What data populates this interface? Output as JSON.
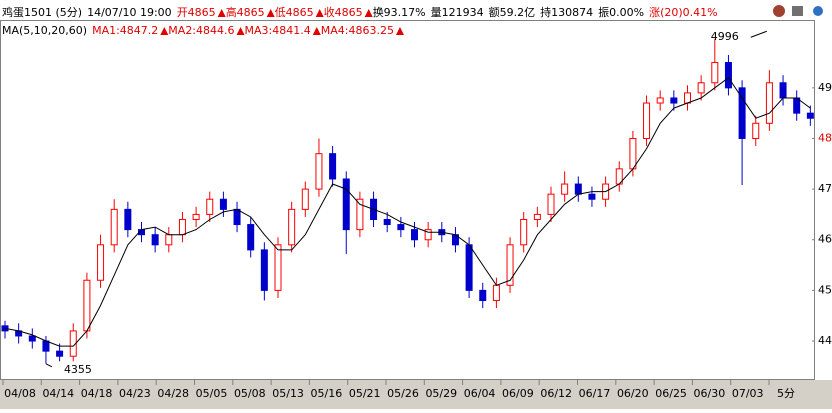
{
  "header": {
    "symbol": "鸡蛋1501 (5分)",
    "time": "14/07/10 19:00",
    "open": "开4865",
    "high": "高4865",
    "low": "低4865",
    "close": "收4865",
    "turnover": "换93.17%",
    "volume": "量121934",
    "amount": "额59.2亿",
    "position": "持130874",
    "amplitude": "振0.00%",
    "change": "涨(20)0.41%",
    "ma_title": "MA(5,10,20,60)",
    "ma1": "MA1:4847.2",
    "ma2": "MA2:4844.6",
    "ma3": "MA3:4841.4",
    "ma4": "MA4:4863.25"
  },
  "chart_data": {
    "type": "candlestick",
    "categories": [
      "04/08",
      "04/14",
      "04/18",
      "04/23",
      "04/28",
      "05/05",
      "05/08",
      "05/13",
      "05/16",
      "05/21",
      "05/26",
      "05/29",
      "06/04",
      "06/09",
      "06/12",
      "06/17",
      "06/20",
      "06/25",
      "06/30",
      "07/03",
      "5分"
    ],
    "ohlc": [
      [
        4430,
        4440,
        4405,
        4420
      ],
      [
        4420,
        4435,
        4395,
        4410
      ],
      [
        4410,
        4425,
        4385,
        4400
      ],
      [
        4400,
        4410,
        4355,
        4380
      ],
      [
        4380,
        4395,
        4360,
        4370
      ],
      [
        4370,
        4435,
        4360,
        4420
      ],
      [
        4420,
        4535,
        4405,
        4520
      ],
      [
        4520,
        4610,
        4505,
        4590
      ],
      [
        4590,
        4680,
        4575,
        4660
      ],
      [
        4660,
        4675,
        4605,
        4620
      ],
      [
        4620,
        4635,
        4595,
        4610
      ],
      [
        4610,
        4625,
        4575,
        4590
      ],
      [
        4590,
        4625,
        4575,
        4610
      ],
      [
        4610,
        4655,
        4595,
        4640
      ],
      [
        4640,
        4665,
        4625,
        4650
      ],
      [
        4650,
        4695,
        4635,
        4680
      ],
      [
        4680,
        4695,
        4645,
        4660
      ],
      [
        4660,
        4675,
        4615,
        4630
      ],
      [
        4630,
        4645,
        4565,
        4580
      ],
      [
        4580,
        4595,
        4480,
        4500
      ],
      [
        4500,
        4605,
        4485,
        4590
      ],
      [
        4590,
        4675,
        4575,
        4660
      ],
      [
        4660,
        4715,
        4645,
        4700
      ],
      [
        4700,
        4800,
        4685,
        4770
      ],
      [
        4770,
        4785,
        4705,
        4720
      ],
      [
        4720,
        4735,
        4572,
        4620
      ],
      [
        4620,
        4695,
        4605,
        4680
      ],
      [
        4680,
        4695,
        4625,
        4640
      ],
      [
        4640,
        4655,
        4615,
        4630
      ],
      [
        4630,
        4645,
        4605,
        4620
      ],
      [
        4620,
        4635,
        4585,
        4600
      ],
      [
        4600,
        4635,
        4585,
        4620
      ],
      [
        4620,
        4635,
        4595,
        4610
      ],
      [
        4610,
        4625,
        4575,
        4590
      ],
      [
        4590,
        4605,
        4485,
        4500
      ],
      [
        4500,
        4515,
        4465,
        4480
      ],
      [
        4480,
        4525,
        4465,
        4510
      ],
      [
        4510,
        4605,
        4495,
        4590
      ],
      [
        4590,
        4655,
        4575,
        4640
      ],
      [
        4640,
        4665,
        4625,
        4650
      ],
      [
        4650,
        4705,
        4635,
        4690
      ],
      [
        4690,
        4735,
        4675,
        4710
      ],
      [
        4710,
        4725,
        4675,
        4690
      ],
      [
        4690,
        4705,
        4665,
        4680
      ],
      [
        4680,
        4725,
        4665,
        4710
      ],
      [
        4710,
        4755,
        4695,
        4740
      ],
      [
        4740,
        4815,
        4725,
        4800
      ],
      [
        4800,
        4885,
        4785,
        4870
      ],
      [
        4870,
        4895,
        4855,
        4880
      ],
      [
        4880,
        4895,
        4855,
        4870
      ],
      [
        4870,
        4905,
        4855,
        4890
      ],
      [
        4890,
        4925,
        4875,
        4910
      ],
      [
        4910,
        4996,
        4895,
        4950
      ],
      [
        4950,
        4965,
        4885,
        4900
      ],
      [
        4900,
        4915,
        4708,
        4800
      ],
      [
        4800,
        4845,
        4785,
        4830
      ],
      [
        4830,
        4935,
        4815,
        4910
      ],
      [
        4910,
        4925,
        4865,
        4880
      ],
      [
        4880,
        4895,
        4835,
        4850
      ],
      [
        4850,
        4865,
        4825,
        4840
      ]
    ],
    "up_color": "#ff0000",
    "down_color": "#0000cc",
    "ma_line": {
      "color": "#000000",
      "values": [
        4425,
        4420,
        4412,
        4400,
        4390,
        4390,
        4420,
        4470,
        4530,
        4590,
        4620,
        4625,
        4610,
        4610,
        4620,
        4640,
        4655,
        4660,
        4645,
        4610,
        4580,
        4580,
        4610,
        4660,
        4710,
        4700,
        4670,
        4660,
        4650,
        4635,
        4625,
        4615,
        4615,
        4610,
        4590,
        4550,
        4510,
        4520,
        4560,
        4610,
        4640,
        4670,
        4690,
        4695,
        4695,
        4710,
        4740,
        4780,
        4830,
        4860,
        4870,
        4880,
        4900,
        4920,
        4880,
        4840,
        4850,
        4880,
        4880,
        4860
      ]
    },
    "annotations": [
      {
        "text": "4996",
        "index": 52
      },
      {
        "text": "4355",
        "index": 3
      }
    ],
    "ylim": [
      4325,
      5032
    ],
    "yticks": [
      {
        "value": 4400,
        "label": "44"
      },
      {
        "value": 4500,
        "label": "45"
      },
      {
        "value": 4600,
        "label": "46"
      },
      {
        "value": 4700,
        "label": "47"
      },
      {
        "value": 4800,
        "label": "48"
      },
      {
        "value": 4900,
        "label": "49"
      }
    ]
  }
}
